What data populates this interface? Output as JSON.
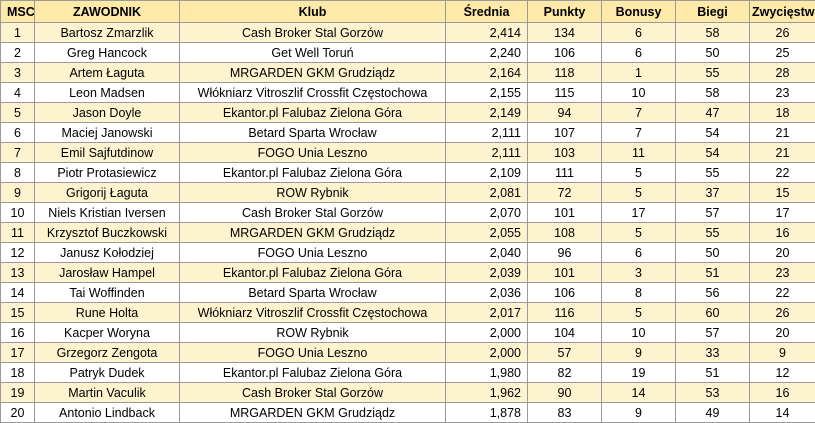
{
  "headers": [
    "MSC",
    "ZAWODNIK",
    "Klub",
    "Średnia",
    "Punkty",
    "Bonusy",
    "Biegi",
    "Zwycięstwa"
  ],
  "rows": [
    {
      "msc": "1",
      "zawodnik": "Bartosz Zmarzlik",
      "klub": "Cash Broker Stal Gorzów",
      "srednia": "2,414",
      "punkty": "134",
      "bonusy": "6",
      "biegi": "58",
      "zwyciestwa": "26"
    },
    {
      "msc": "2",
      "zawodnik": "Greg Hancock",
      "klub": "Get Well Toruń",
      "srednia": "2,240",
      "punkty": "106",
      "bonusy": "6",
      "biegi": "50",
      "zwyciestwa": "25"
    },
    {
      "msc": "3",
      "zawodnik": "Artem Łaguta",
      "klub": "MRGARDEN GKM Grudziądz",
      "srednia": "2,164",
      "punkty": "118",
      "bonusy": "1",
      "biegi": "55",
      "zwyciestwa": "28"
    },
    {
      "msc": "4",
      "zawodnik": "Leon Madsen",
      "klub": "Włókniarz Vitroszlif Crossfit Częstochowa",
      "srednia": "2,155",
      "punkty": "115",
      "bonusy": "10",
      "biegi": "58",
      "zwyciestwa": "23"
    },
    {
      "msc": "5",
      "zawodnik": "Jason Doyle",
      "klub": "Ekantor.pl Falubaz Zielona Góra",
      "srednia": "2,149",
      "punkty": "94",
      "bonusy": "7",
      "biegi": "47",
      "zwyciestwa": "18"
    },
    {
      "msc": "6",
      "zawodnik": "Maciej Janowski",
      "klub": "Betard Sparta Wrocław",
      "srednia": "2,111",
      "punkty": "107",
      "bonusy": "7",
      "biegi": "54",
      "zwyciestwa": "21"
    },
    {
      "msc": "7",
      "zawodnik": "Emil Sajfutdinow",
      "klub": "FOGO Unia Leszno",
      "srednia": "2,111",
      "punkty": "103",
      "bonusy": "11",
      "biegi": "54",
      "zwyciestwa": "21"
    },
    {
      "msc": "8",
      "zawodnik": "Piotr Protasiewicz",
      "klub": "Ekantor.pl Falubaz Zielona Góra",
      "srednia": "2,109",
      "punkty": "111",
      "bonusy": "5",
      "biegi": "55",
      "zwyciestwa": "22"
    },
    {
      "msc": "9",
      "zawodnik": "Grigorij Łaguta",
      "klub": "ROW Rybnik",
      "srednia": "2,081",
      "punkty": "72",
      "bonusy": "5",
      "biegi": "37",
      "zwyciestwa": "15"
    },
    {
      "msc": "10",
      "zawodnik": "Niels Kristian Iversen",
      "klub": "Cash Broker Stal Gorzów",
      "srednia": "2,070",
      "punkty": "101",
      "bonusy": "17",
      "biegi": "57",
      "zwyciestwa": "17"
    },
    {
      "msc": "11",
      "zawodnik": "Krzysztof Buczkowski",
      "klub": "MRGARDEN GKM Grudziądz",
      "srednia": "2,055",
      "punkty": "108",
      "bonusy": "5",
      "biegi": "55",
      "zwyciestwa": "16"
    },
    {
      "msc": "12",
      "zawodnik": "Janusz Kołodziej",
      "klub": "FOGO Unia Leszno",
      "srednia": "2,040",
      "punkty": "96",
      "bonusy": "6",
      "biegi": "50",
      "zwyciestwa": "20"
    },
    {
      "msc": "13",
      "zawodnik": "Jarosław Hampel",
      "klub": "Ekantor.pl Falubaz Zielona Góra",
      "srednia": "2,039",
      "punkty": "101",
      "bonusy": "3",
      "biegi": "51",
      "zwyciestwa": "23"
    },
    {
      "msc": "14",
      "zawodnik": "Tai Woffinden",
      "klub": "Betard Sparta Wrocław",
      "srednia": "2,036",
      "punkty": "106",
      "bonusy": "8",
      "biegi": "56",
      "zwyciestwa": "22"
    },
    {
      "msc": "15",
      "zawodnik": "Rune Holta",
      "klub": "Włókniarz Vitroszlif Crossfit Częstochowa",
      "srednia": "2,017",
      "punkty": "116",
      "bonusy": "5",
      "biegi": "60",
      "zwyciestwa": "26"
    },
    {
      "msc": "16",
      "zawodnik": "Kacper Woryna",
      "klub": "ROW Rybnik",
      "srednia": "2,000",
      "punkty": "104",
      "bonusy": "10",
      "biegi": "57",
      "zwyciestwa": "20"
    },
    {
      "msc": "17",
      "zawodnik": "Grzegorz Zengota",
      "klub": "FOGO Unia Leszno",
      "srednia": "2,000",
      "punkty": "57",
      "bonusy": "9",
      "biegi": "33",
      "zwyciestwa": "9"
    },
    {
      "msc": "18",
      "zawodnik": "Patryk Dudek",
      "klub": "Ekantor.pl Falubaz Zielona Góra",
      "srednia": "1,980",
      "punkty": "82",
      "bonusy": "19",
      "biegi": "51",
      "zwyciestwa": "12"
    },
    {
      "msc": "19",
      "zawodnik": "Martin Vaculik",
      "klub": "Cash Broker Stal Gorzów",
      "srednia": "1,962",
      "punkty": "90",
      "bonusy": "14",
      "biegi": "53",
      "zwyciestwa": "16"
    },
    {
      "msc": "20",
      "zawodnik": "Antonio Lindback",
      "klub": "MRGARDEN GKM Grudziądz",
      "srednia": "1,878",
      "punkty": "83",
      "bonusy": "9",
      "biegi": "49",
      "zwyciestwa": "14"
    }
  ]
}
